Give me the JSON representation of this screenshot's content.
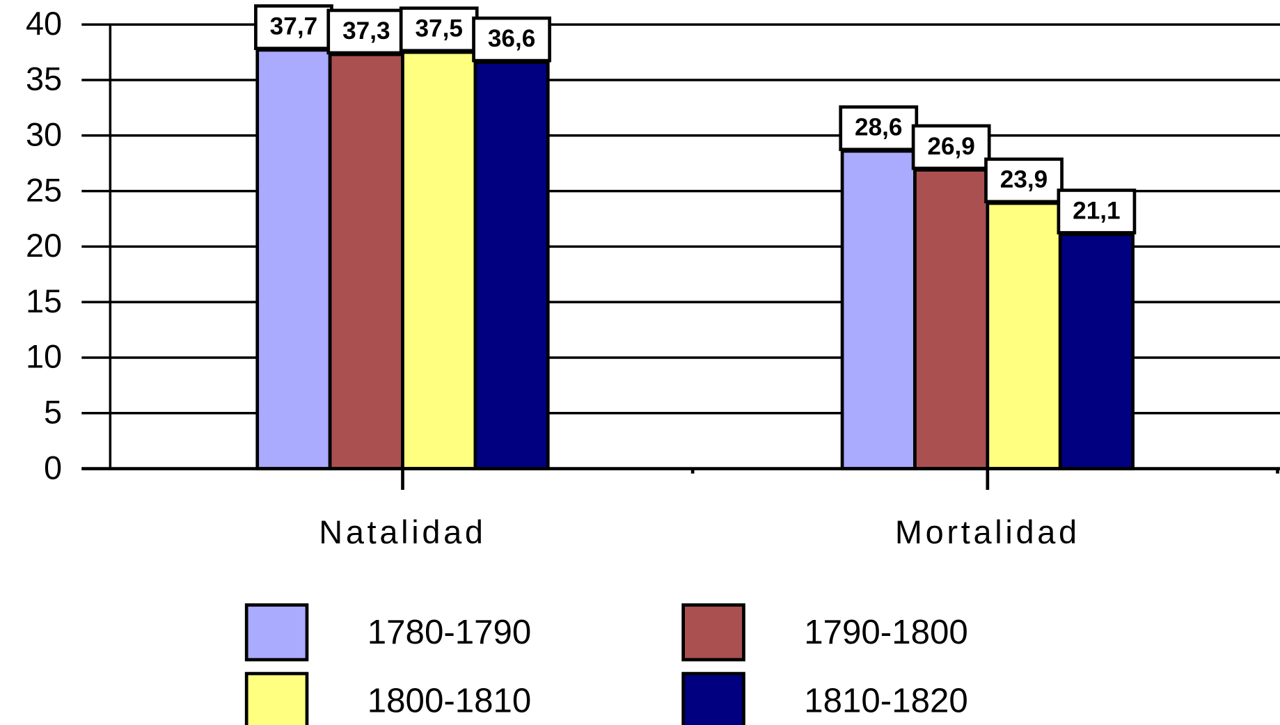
{
  "chart_data": {
    "type": "bar",
    "categories": [
      "Natalidad",
      "Mortalidad"
    ],
    "series": [
      {
        "name": "1780-1790",
        "color": "#aaaaff",
        "values": [
          37.7,
          28.6
        ],
        "value_labels": [
          "37,7",
          "28,6"
        ]
      },
      {
        "name": "1790-1800",
        "color": "#aa5050",
        "values": [
          37.3,
          26.9
        ],
        "value_labels": [
          "37,3",
          "26,9"
        ]
      },
      {
        "name": "1800-1810",
        "color": "#ffff80",
        "values": [
          37.5,
          23.9
        ],
        "value_labels": [
          "37,5",
          "23,9"
        ]
      },
      {
        "name": "1810-1820",
        "color": "#000080",
        "values": [
          36.6,
          21.1
        ],
        "value_labels": [
          "36,6",
          "21,1"
        ]
      }
    ],
    "ylim": [
      0,
      40
    ],
    "yticks": [
      0,
      5,
      10,
      15,
      20,
      25,
      30,
      35,
      40
    ],
    "grid": true,
    "legend": "bottom"
  }
}
